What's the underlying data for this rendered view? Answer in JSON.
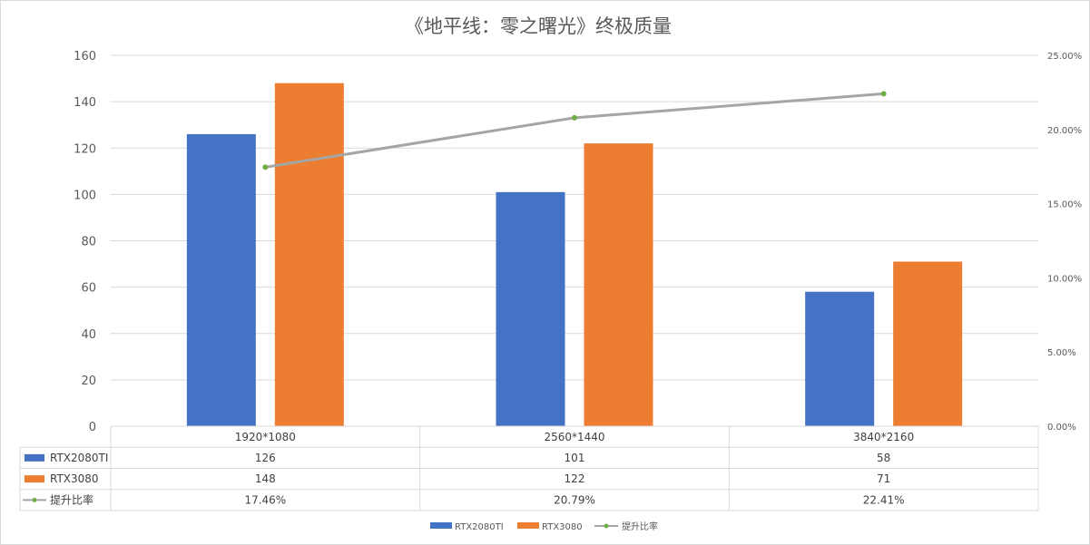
{
  "chart_data": {
    "type": "bar",
    "title": "《地平线：零之曙光》终极质量",
    "categories": [
      "1920*1080",
      "2560*1440",
      "3840*2160"
    ],
    "series": [
      {
        "name": "RTX2080TI",
        "type": "bar",
        "axis": "left",
        "color": "#4472c4",
        "values": [
          126,
          101,
          58
        ]
      },
      {
        "name": "RTX3080",
        "type": "bar",
        "axis": "left",
        "color": "#ed7d31",
        "values": [
          148,
          122,
          71
        ]
      },
      {
        "name": "提升比率",
        "type": "line",
        "axis": "right",
        "color": "#a5a5a5",
        "marker_color": "#70ad47",
        "values": [
          17.46,
          20.79,
          22.41
        ]
      }
    ],
    "table_values": [
      [
        "126",
        "101",
        "58"
      ],
      [
        "148",
        "122",
        "71"
      ],
      [
        "17.46%",
        "20.79%",
        "22.41%"
      ]
    ],
    "y_left": {
      "min": 0,
      "max": 160,
      "ticks": [
        "0",
        "20",
        "40",
        "60",
        "80",
        "100",
        "120",
        "140",
        "160"
      ]
    },
    "y_right": {
      "min": 0,
      "max": 25,
      "ticks": [
        "0.00%",
        "5.00%",
        "10.00%",
        "15.00%",
        "20.00%",
        "25.00%"
      ]
    },
    "grid": true,
    "legend_position": "bottom",
    "data_table": true
  }
}
